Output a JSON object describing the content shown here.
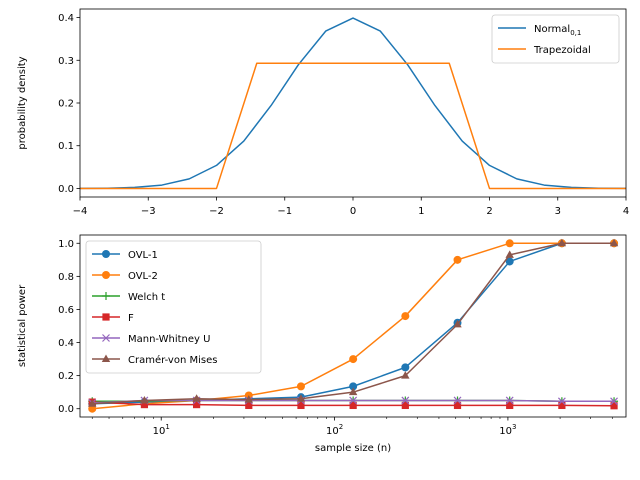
{
  "chart_data": [
    {
      "type": "line",
      "xlabel": "",
      "ylabel": "probability density",
      "xlim": [
        -4,
        4
      ],
      "ylim": [
        0,
        0.4
      ],
      "x_ticks": [
        -4,
        -3,
        -2,
        -1,
        0,
        1,
        2,
        3,
        4
      ],
      "x_tick_labels": [
        "−4",
        "−3",
        "−2",
        "−1",
        "0",
        "1",
        "2",
        "3",
        "4"
      ],
      "y_ticks": [
        0.0,
        0.1,
        0.2,
        0.3,
        0.4
      ],
      "y_tick_labels": [
        "0.0",
        "0.1",
        "0.2",
        "0.3",
        "0.4"
      ],
      "grid": false,
      "legend_position": "top-right",
      "series": [
        {
          "name": "Normal",
          "name_subscript": "0,1",
          "color": "#1f77b4",
          "x": [
            -4,
            -3.6,
            -3.2,
            -2.8,
            -2.4,
            -2.0,
            -1.6,
            -1.2,
            -0.8,
            -0.4,
            0,
            0.4,
            0.8,
            1.2,
            1.6,
            2.0,
            2.4,
            2.8,
            3.2,
            3.6,
            4
          ],
          "y": [
            0.0001,
            0.0006,
            0.0024,
            0.0079,
            0.0224,
            0.054,
            0.1109,
            0.1942,
            0.2897,
            0.3683,
            0.3989,
            0.3683,
            0.2897,
            0.1942,
            0.1109,
            0.054,
            0.0224,
            0.0079,
            0.0024,
            0.0006,
            0.0001
          ]
        },
        {
          "name": "Trapezoidal",
          "color": "#ff7f0e",
          "x": [
            -4,
            -2.0,
            -1.41,
            1.41,
            2.0,
            4
          ],
          "y": [
            0,
            0,
            0.293,
            0.293,
            0,
            0
          ]
        }
      ]
    },
    {
      "type": "line",
      "xlabel": "sample size (n)",
      "ylabel": "statistical power",
      "x_scale": "log",
      "xlim": [
        3.4,
        4800
      ],
      "ylim": [
        0,
        1.0
      ],
      "x_ticks": [
        10,
        100,
        1000
      ],
      "x_tick_labels": [
        {
          "base": "10",
          "exp": "1"
        },
        {
          "base": "10",
          "exp": "2"
        },
        {
          "base": "10",
          "exp": "3"
        }
      ],
      "y_ticks": [
        0.0,
        0.2,
        0.4,
        0.6,
        0.8,
        1.0
      ],
      "y_tick_labels": [
        "0.0",
        "0.2",
        "0.4",
        "0.6",
        "0.8",
        "1.0"
      ],
      "grid": false,
      "legend_position": "top-left",
      "x": [
        4,
        8,
        16,
        32,
        64,
        128,
        256,
        512,
        1024,
        2048,
        4096
      ],
      "series": [
        {
          "name": "OVL-1",
          "color": "#1f77b4",
          "marker": "circle",
          "values": [
            0.03,
            0.04,
            0.05,
            0.06,
            0.07,
            0.135,
            0.25,
            0.52,
            0.89,
            1.0,
            1.0
          ]
        },
        {
          "name": "OVL-2",
          "color": "#ff7f0e",
          "marker": "circle",
          "values": [
            0.0,
            0.03,
            0.05,
            0.08,
            0.135,
            0.3,
            0.56,
            0.9,
            1.0,
            1.0,
            1.0
          ]
        },
        {
          "name": "Welch t",
          "color": "#2ca02c",
          "marker": "plus",
          "values": [
            0.045,
            0.045,
            0.05,
            0.05,
            0.05,
            0.05,
            0.05,
            0.05,
            0.05,
            0.045,
            0.045
          ]
        },
        {
          "name": "F",
          "color": "#d62728",
          "marker": "square",
          "values": [
            0.04,
            0.025,
            0.025,
            0.02,
            0.02,
            0.02,
            0.02,
            0.02,
            0.02,
            0.02,
            0.018
          ]
        },
        {
          "name": "Mann-Whitney U",
          "color": "#9467bd",
          "marker": "x",
          "values": [
            0.035,
            0.05,
            0.05,
            0.05,
            0.05,
            0.05,
            0.05,
            0.05,
            0.05,
            0.045,
            0.045
          ]
        },
        {
          "name": "Cramér-von Mises",
          "color": "#8c564b",
          "marker": "triangle",
          "values": [
            0.03,
            0.05,
            0.06,
            0.055,
            0.06,
            0.1,
            0.2,
            0.51,
            0.93,
            1.0,
            1.0
          ]
        }
      ]
    }
  ]
}
